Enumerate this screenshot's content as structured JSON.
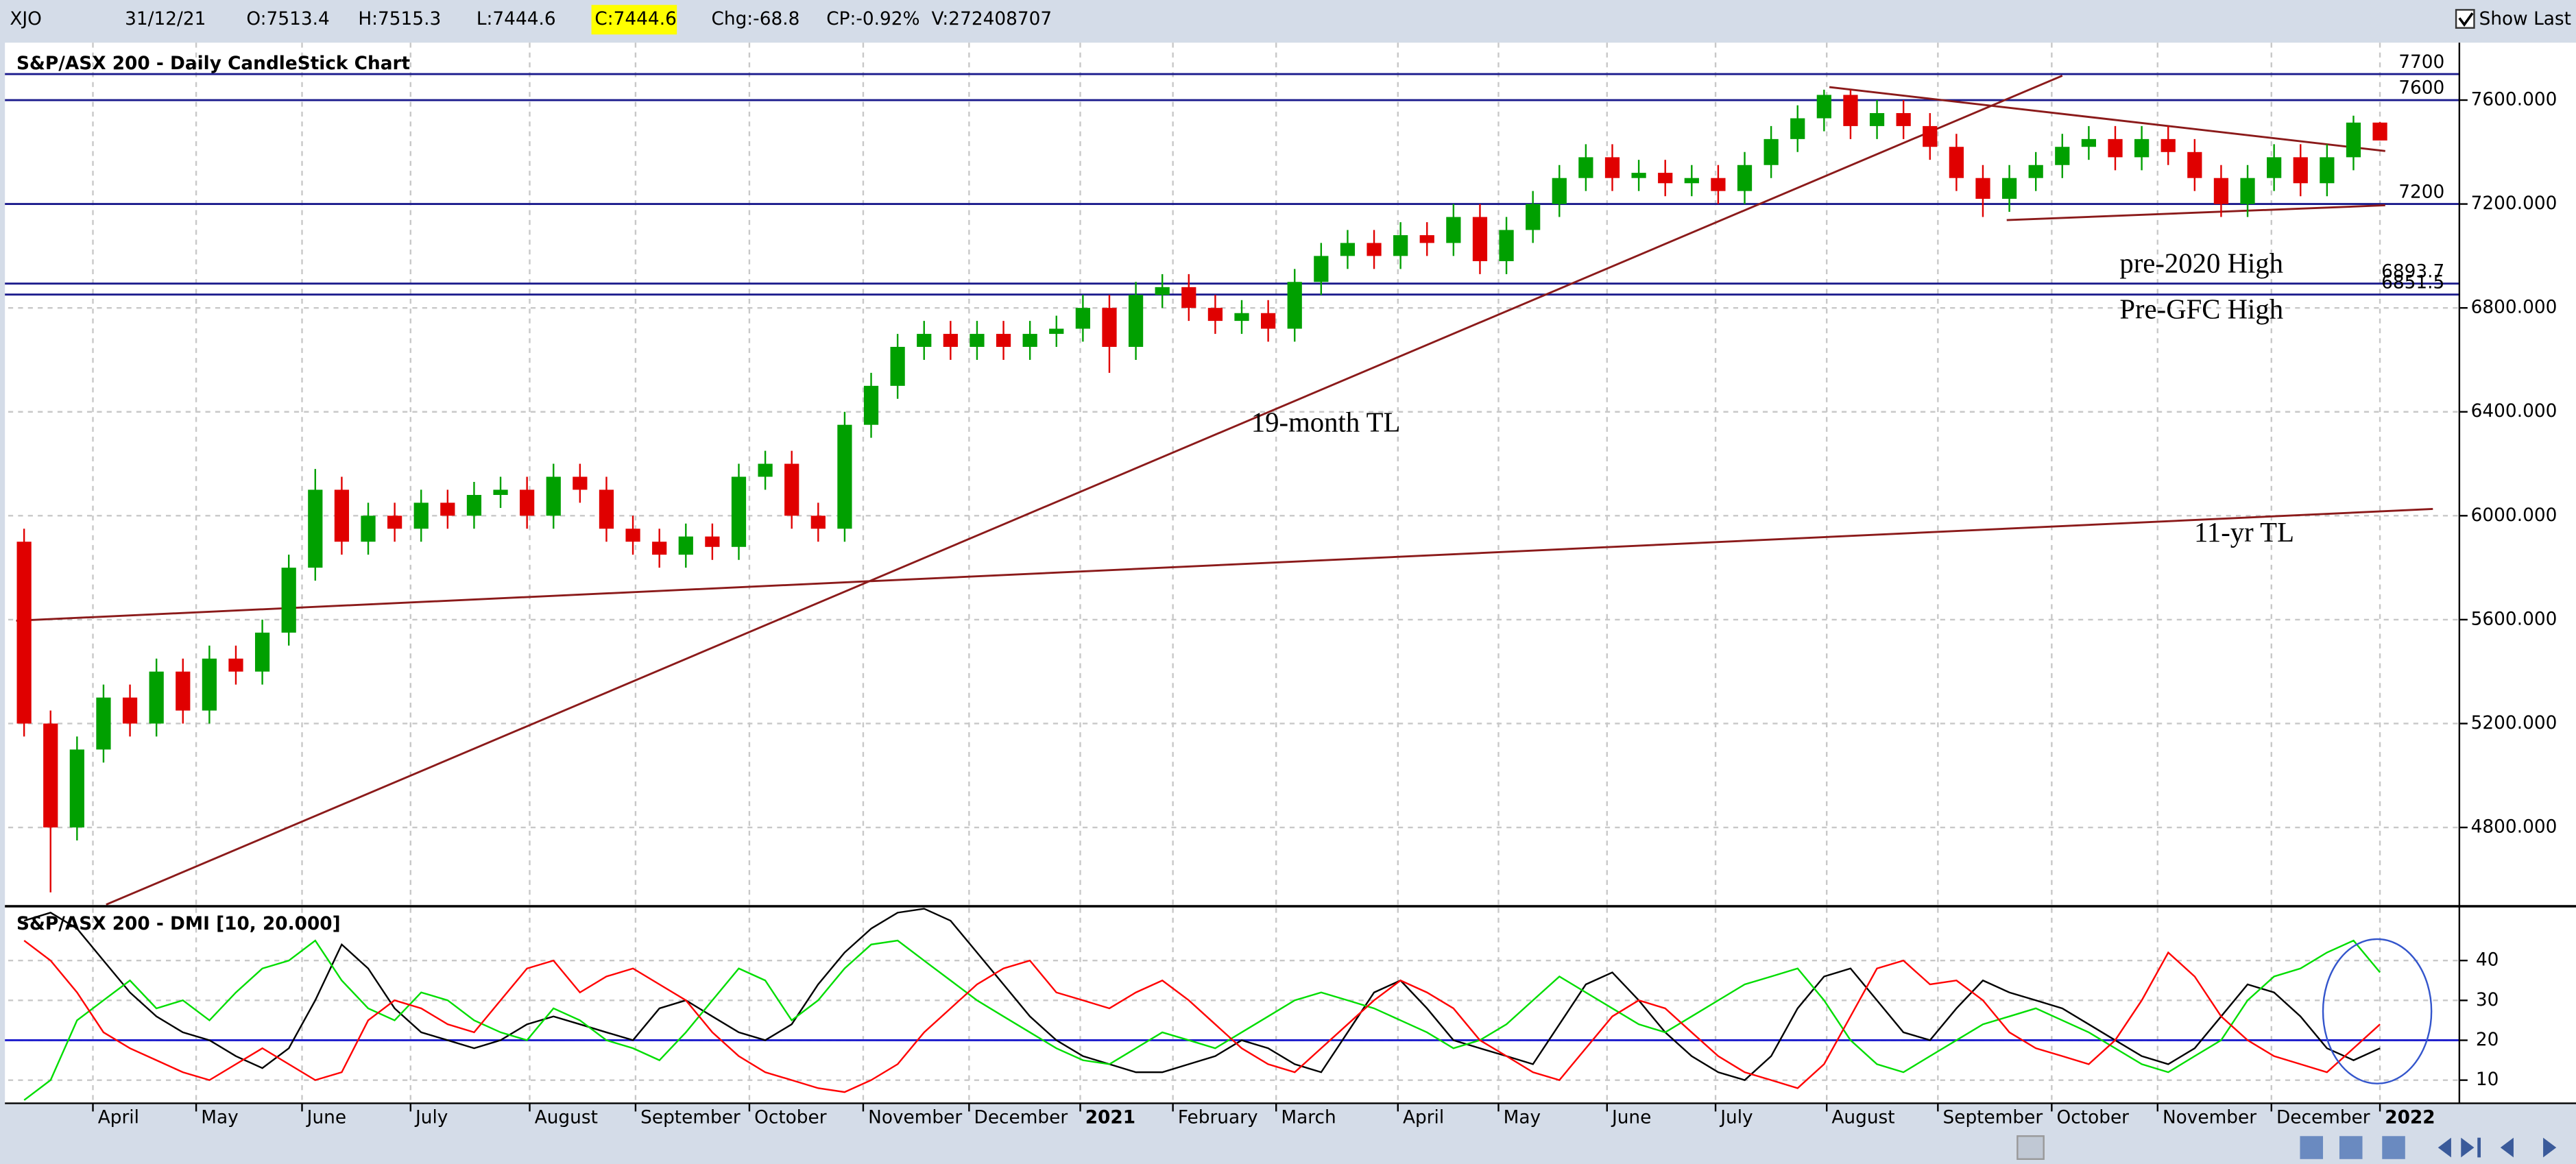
{
  "toolbar": {
    "symbol": "XJO",
    "date": "31/12/21",
    "open": "O:7513.4",
    "high": "H:7515.3",
    "low": "L:7444.6",
    "close": "C:7444.6",
    "change": "Chg:-68.8",
    "change_pct": "CP:-0.92%",
    "volume": "V:272408707",
    "show_last": "Show Last"
  },
  "chart_data": [
    {
      "type": "candlestick",
      "title": "S&P/ASX 200 - Daily CandleStick Chart",
      "xlim": [
        -0.6,
        92
      ],
      "xticks": [
        {
          "value": 2.6,
          "label": "April"
        },
        {
          "value": 6.5,
          "label": "May"
        },
        {
          "value": 10.5,
          "label": "June"
        },
        {
          "value": 14.6,
          "label": "July"
        },
        {
          "value": 19.1,
          "label": "August"
        },
        {
          "value": 23.1,
          "label": "September"
        },
        {
          "value": 27.4,
          "label": "October"
        },
        {
          "value": 31.7,
          "label": "November"
        },
        {
          "value": 35.7,
          "label": "December"
        },
        {
          "value": 39.9,
          "label": "2021"
        },
        {
          "value": 43.4,
          "label": "February"
        },
        {
          "value": 47.3,
          "label": "March"
        },
        {
          "value": 51.9,
          "label": "April"
        },
        {
          "value": 55.7,
          "label": "May"
        },
        {
          "value": 59.8,
          "label": "June"
        },
        {
          "value": 63.9,
          "label": "July"
        },
        {
          "value": 68.1,
          "label": "August"
        },
        {
          "value": 72.3,
          "label": "September"
        },
        {
          "value": 76.6,
          "label": "October"
        },
        {
          "value": 80.6,
          "label": "November"
        },
        {
          "value": 84.9,
          "label": "December"
        },
        {
          "value": 89.0,
          "label": "2022"
        }
      ],
      "ylim": [
        4503,
        7821
      ],
      "yticks": [
        {
          "value": 4800,
          "label": "4800.000"
        },
        {
          "value": 5200,
          "label": "5200.000"
        },
        {
          "value": 5600,
          "label": "5600.000"
        },
        {
          "value": 6000,
          "label": "6000.000"
        },
        {
          "value": 6400,
          "label": "6400.000"
        },
        {
          "value": 6800,
          "label": "6800.000"
        },
        {
          "value": 7200,
          "label": "7200.000"
        },
        {
          "value": 7600,
          "label": "7600.000"
        }
      ],
      "grid": true,
      "up_color": "#00a000",
      "down_color": "#e00000",
      "open": [
        5900,
        5200,
        4800,
        5100,
        5300,
        5200,
        5400,
        5250,
        5450,
        5400,
        5550,
        5800,
        6100,
        5900,
        6000,
        5950,
        6050,
        6000,
        6080,
        6100,
        6000,
        6150,
        6100,
        5950,
        5900,
        5850,
        5920,
        5880,
        6150,
        6200,
        6000,
        5950,
        6350,
        6500,
        6650,
        6700,
        6650,
        6700,
        6650,
        6700,
        6720,
        6800,
        6650,
        6850,
        6880,
        6800,
        6750,
        6780,
        6720,
        6900,
        7000,
        7050,
        7000,
        7080,
        7050,
        7150,
        6980,
        7100,
        7200,
        7300,
        7380,
        7300,
        7320,
        7280,
        7300,
        7250,
        7350,
        7450,
        7530,
        7620,
        7500,
        7550,
        7500,
        7420,
        7300,
        7220,
        7300,
        7350,
        7420,
        7450,
        7380,
        7450,
        7400,
        7300,
        7200,
        7300,
        7380,
        7280,
        7380,
        7513.4
      ],
      "high": [
        5950,
        5250,
        5150,
        5350,
        5350,
        5450,
        5450,
        5500,
        5500,
        5600,
        5850,
        6180,
        6150,
        6050,
        6050,
        6100,
        6100,
        6130,
        6150,
        6150,
        6200,
        6200,
        6150,
        6000,
        5950,
        5970,
        5970,
        6200,
        6250,
        6250,
        6050,
        6400,
        6550,
        6700,
        6750,
        6750,
        6750,
        6750,
        6750,
        6770,
        6850,
        6850,
        6900,
        6930,
        6930,
        6850,
        6830,
        6830,
        6950,
        7050,
        7100,
        7100,
        7130,
        7130,
        7200,
        7200,
        7150,
        7250,
        7350,
        7430,
        7430,
        7370,
        7370,
        7350,
        7350,
        7400,
        7500,
        7580,
        7640,
        7640,
        7600,
        7600,
        7550,
        7470,
        7350,
        7350,
        7400,
        7470,
        7500,
        7500,
        7500,
        7500,
        7450,
        7350,
        7350,
        7430,
        7430,
        7430,
        7540,
        7515.3
      ],
      "low": [
        5150,
        4550,
        4750,
        5050,
        5150,
        5150,
        5200,
        5200,
        5350,
        5350,
        5500,
        5750,
        5850,
        5850,
        5900,
        5900,
        5950,
        5950,
        6030,
        5950,
        5950,
        6050,
        5900,
        5850,
        5800,
        5800,
        5830,
        5830,
        6100,
        5950,
        5900,
        5900,
        6300,
        6450,
        6600,
        6600,
        6600,
        6600,
        6600,
        6650,
        6670,
        6550,
        6600,
        6800,
        6750,
        6700,
        6700,
        6670,
        6670,
        6850,
        6950,
        6950,
        6950,
        7000,
        7000,
        6930,
        6930,
        7050,
        7150,
        7250,
        7250,
        7250,
        7230,
        7230,
        7200,
        7200,
        7300,
        7400,
        7480,
        7450,
        7450,
        7450,
        7370,
        7250,
        7150,
        7170,
        7250,
        7300,
        7370,
        7330,
        7330,
        7350,
        7250,
        7150,
        7150,
        7250,
        7230,
        7230,
        7330,
        7444.6
      ],
      "close": [
        5200,
        4800,
        5100,
        5300,
        5200,
        5400,
        5250,
        5450,
        5400,
        5550,
        5800,
        6100,
        5900,
        6000,
        5950,
        6050,
        6000,
        6080,
        6100,
        6000,
        6150,
        6100,
        5950,
        5900,
        5850,
        5920,
        5880,
        6150,
        6200,
        6000,
        5950,
        6350,
        6500,
        6650,
        6700,
        6650,
        6700,
        6650,
        6700,
        6720,
        6800,
        6650,
        6850,
        6880,
        6800,
        6750,
        6780,
        6720,
        6900,
        7000,
        7050,
        7000,
        7080,
        7050,
        7150,
        6980,
        7100,
        7200,
        7300,
        7380,
        7300,
        7320,
        7280,
        7300,
        7250,
        7350,
        7450,
        7530,
        7620,
        7500,
        7550,
        7500,
        7420,
        7300,
        7220,
        7300,
        7350,
        7420,
        7450,
        7380,
        7450,
        7400,
        7300,
        7200,
        7300,
        7380,
        7280,
        7380,
        7513.4,
        7444.6
      ],
      "hlines": [
        7700,
        7600,
        7200,
        6893.7,
        6851.5
      ],
      "hline_color": "#1a1a8c",
      "trendlines": [
        {
          "x": [
            3.1,
            77
          ],
          "y": [
            4503,
            7694
          ],
          "color": "#8b1a1a"
        },
        {
          "x": [
            -0.3,
            91
          ],
          "y": [
            5596,
            6026
          ],
          "color": "#8b1a1a"
        },
        {
          "x": [
            68.2,
            89.2
          ],
          "y": [
            7650,
            7404
          ],
          "color": "#8b1a1a"
        },
        {
          "x": [
            74.9,
            89.2
          ],
          "y": [
            7138,
            7195
          ],
          "color": "#8b1a1a"
        }
      ],
      "annotations": [
        "pre-2020 High",
        "Pre-GFC High",
        "19-month TL",
        "11-yr TL"
      ],
      "annotation_color": "#1a1a8c"
    },
    {
      "type": "line",
      "title": "S&P/ASX 200 - DMI [10, 20.000]",
      "xlim": [
        -0.6,
        92
      ],
      "ylim": [
        4.2,
        53.2
      ],
      "yticks": [
        10,
        20,
        30,
        40
      ],
      "hlines": [
        20
      ],
      "hline_color": "#1a1acc",
      "series": [
        {
          "color": "#000000",
          "values": [
            50,
            52,
            48,
            40,
            32,
            26,
            22,
            20,
            16,
            13,
            18,
            30,
            44,
            38,
            28,
            22,
            20,
            18,
            20,
            24,
            26,
            24,
            22,
            20,
            28,
            30,
            26,
            22,
            20,
            24,
            34,
            42,
            48,
            52,
            53,
            50,
            42,
            34,
            26,
            20,
            16,
            14,
            12,
            12,
            14,
            16,
            20,
            18,
            14,
            12,
            22,
            32,
            35,
            28,
            20,
            18,
            16,
            14,
            24,
            34,
            37,
            30,
            22,
            16,
            12,
            10,
            16,
            28,
            36,
            38,
            30,
            22,
            20,
            28,
            35,
            32,
            30,
            28,
            24,
            20,
            16,
            14,
            18,
            26,
            34,
            32,
            26,
            18,
            15,
            18
          ]
        },
        {
          "color": "#00dd00",
          "values": [
            5,
            10,
            25,
            30,
            35,
            28,
            30,
            25,
            32,
            38,
            40,
            45,
            35,
            28,
            25,
            32,
            30,
            25,
            22,
            20,
            28,
            25,
            20,
            18,
            15,
            22,
            30,
            38,
            35,
            25,
            30,
            38,
            44,
            45,
            40,
            35,
            30,
            26,
            22,
            18,
            15,
            14,
            18,
            22,
            20,
            18,
            22,
            26,
            30,
            32,
            30,
            28,
            25,
            22,
            18,
            20,
            24,
            30,
            36,
            32,
            28,
            24,
            22,
            26,
            30,
            34,
            36,
            38,
            30,
            20,
            14,
            12,
            16,
            20,
            24,
            26,
            28,
            25,
            22,
            18,
            14,
            12,
            16,
            20,
            30,
            36,
            38,
            42,
            45,
            37
          ]
        },
        {
          "color": "#ff0000",
          "values": [
            45,
            40,
            32,
            22,
            18,
            15,
            12,
            10,
            14,
            18,
            14,
            10,
            12,
            25,
            30,
            28,
            24,
            22,
            30,
            38,
            40,
            32,
            36,
            38,
            34,
            30,
            22,
            16,
            12,
            10,
            8,
            7,
            10,
            14,
            22,
            28,
            34,
            38,
            40,
            32,
            30,
            28,
            32,
            35,
            30,
            24,
            18,
            14,
            12,
            18,
            24,
            30,
            35,
            32,
            28,
            20,
            16,
            12,
            10,
            18,
            26,
            30,
            28,
            22,
            16,
            12,
            10,
            8,
            14,
            26,
            38,
            40,
            34,
            35,
            30,
            22,
            18,
            16,
            14,
            20,
            30,
            42,
            36,
            26,
            20,
            16,
            14,
            12,
            18,
            24
          ]
        }
      ]
    }
  ]
}
